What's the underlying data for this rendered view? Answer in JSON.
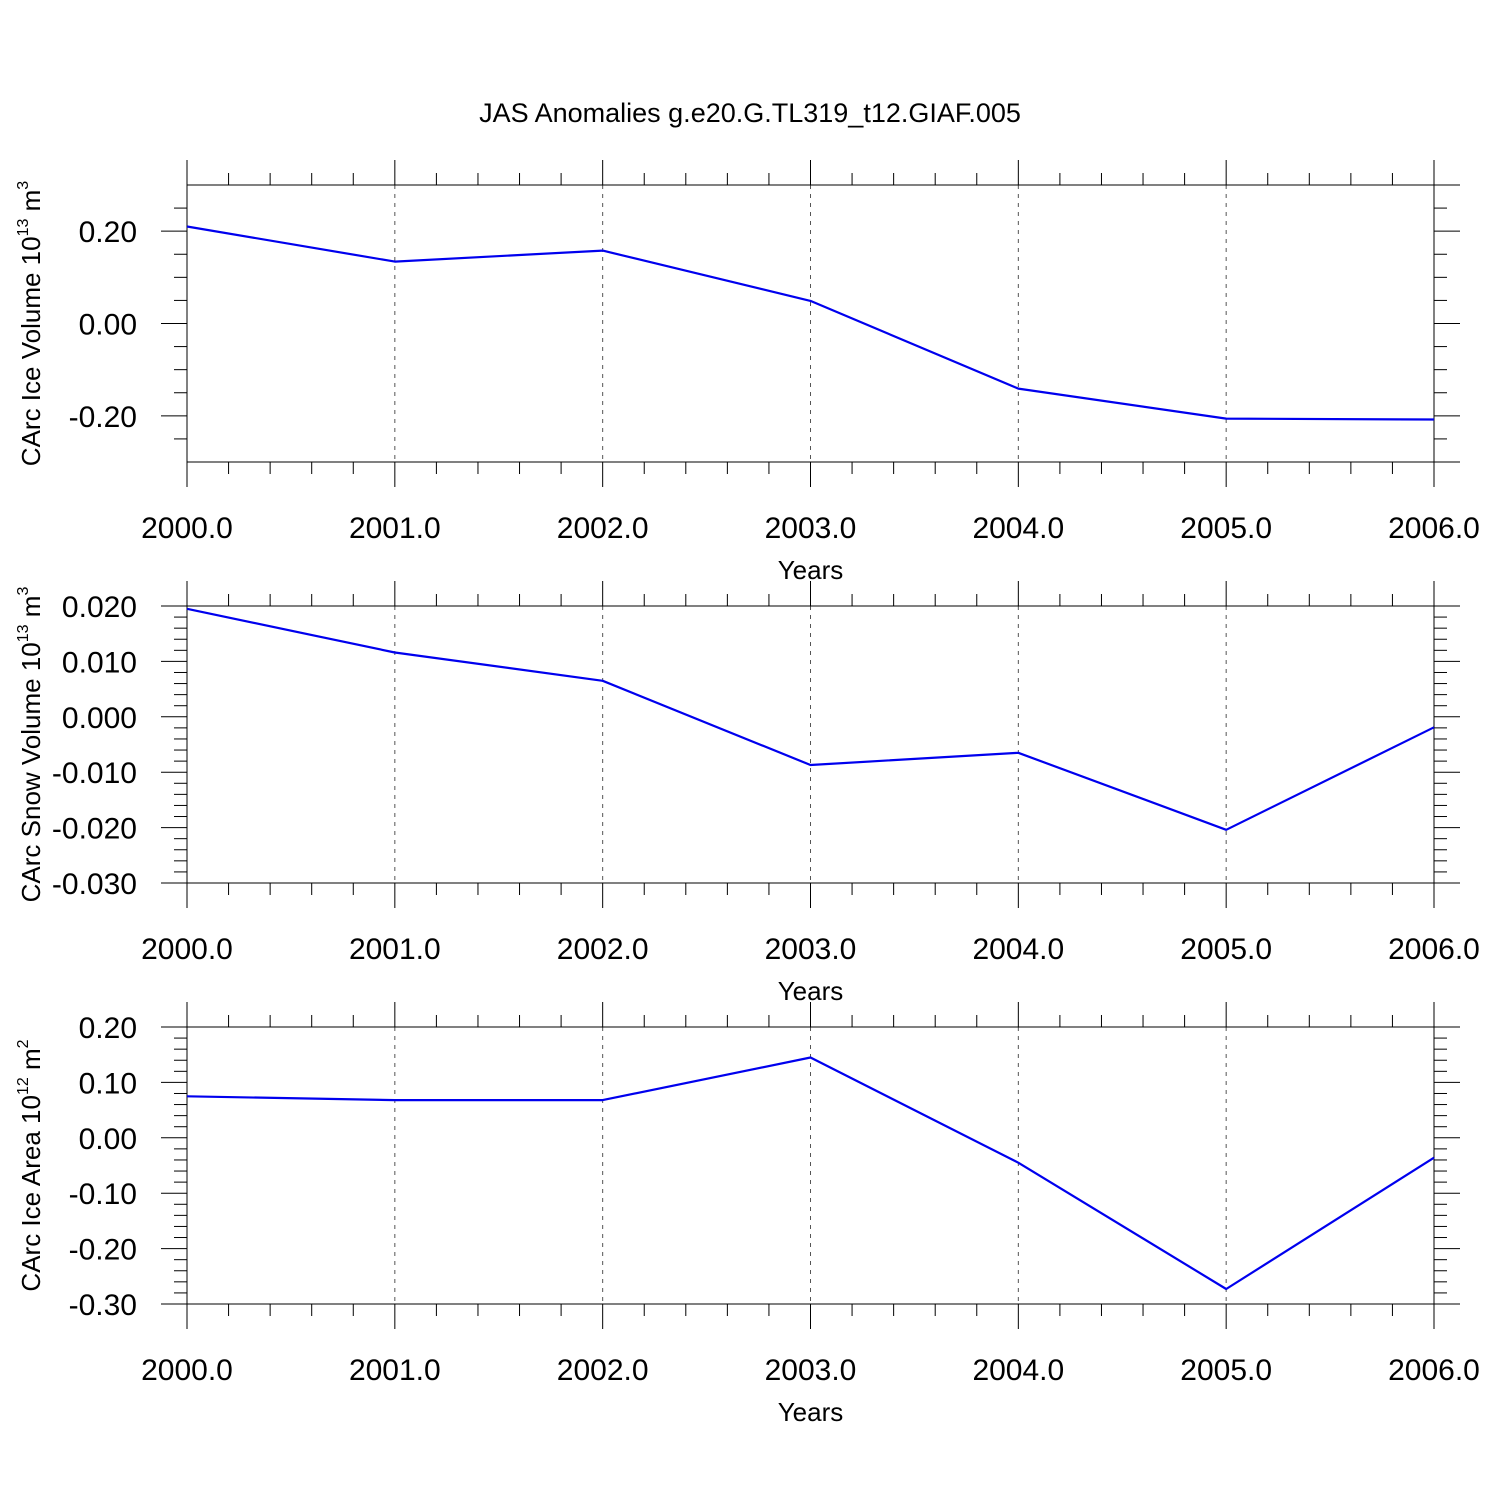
{
  "chart_data": {
    "title": "JAS Anomalies g.e20.G.TL319_t12.GIAF.005",
    "type": "line",
    "line_color": "#0000ee",
    "grid": "vertical dashed at major x ticks",
    "panels": [
      {
        "ylabel": "CArc Ice Volume 10",
        "ylabel_exp": "13",
        "ylabel_unit": "m",
        "ylabel_unit_exp": "3",
        "xlabel": "Years",
        "xlim": [
          2000,
          2006
        ],
        "ylim": [
          -0.3,
          0.3
        ],
        "yticks": [
          -0.2,
          0.0,
          0.2
        ],
        "ytick_labels": [
          "-0.20",
          "0.00",
          "0.20"
        ],
        "yminor": 0.05,
        "xticks": [
          2000,
          2001,
          2002,
          2003,
          2004,
          2005,
          2006
        ],
        "xtick_labels": [
          "2000.0",
          "2001.0",
          "2002.0",
          "2003.0",
          "2004.0",
          "2005.0",
          "2006.0"
        ],
        "x": [
          2000,
          2001,
          2002,
          2003,
          2004,
          2005,
          2006
        ],
        "y": [
          0.21,
          0.134,
          0.158,
          0.049,
          -0.141,
          -0.206,
          -0.208
        ]
      },
      {
        "ylabel": "CArc Snow Volume 10",
        "ylabel_exp": "13",
        "ylabel_unit": "m",
        "ylabel_unit_exp": "3",
        "xlabel": "Years",
        "xlim": [
          2000,
          2006
        ],
        "ylim": [
          -0.03,
          0.02
        ],
        "yticks": [
          -0.03,
          -0.02,
          -0.01,
          0.0,
          0.01,
          0.02
        ],
        "ytick_labels": [
          "-0.030",
          "-0.020",
          "-0.010",
          "0.000",
          "0.010",
          "0.020"
        ],
        "yminor": 0.002,
        "xticks": [
          2000,
          2001,
          2002,
          2003,
          2004,
          2005,
          2006
        ],
        "xtick_labels": [
          "2000.0",
          "2001.0",
          "2002.0",
          "2003.0",
          "2004.0",
          "2005.0",
          "2006.0"
        ],
        "x": [
          2000,
          2001,
          2002,
          2003,
          2004,
          2005,
          2006
        ],
        "y": [
          0.0195,
          0.0116,
          0.0065,
          -0.0087,
          -0.0065,
          -0.0204,
          -0.0019
        ]
      },
      {
        "ylabel": "CArc Ice Area 10",
        "ylabel_exp": "12",
        "ylabel_unit": "m",
        "ylabel_unit_exp": "2",
        "xlabel": "Years",
        "xlim": [
          2000,
          2006
        ],
        "ylim": [
          -0.3,
          0.2
        ],
        "yticks": [
          -0.3,
          -0.2,
          -0.1,
          0.0,
          0.1,
          0.2
        ],
        "ytick_labels": [
          "-0.30",
          "-0.20",
          "-0.10",
          "0.00",
          "0.10",
          "0.20"
        ],
        "yminor": 0.02,
        "xticks": [
          2000,
          2001,
          2002,
          2003,
          2004,
          2005,
          2006
        ],
        "xtick_labels": [
          "2000.0",
          "2001.0",
          "2002.0",
          "2003.0",
          "2004.0",
          "2005.0",
          "2006.0"
        ],
        "x": [
          2000,
          2001,
          2002,
          2003,
          2004,
          2005,
          2006
        ],
        "y": [
          0.075,
          0.068,
          0.068,
          0.145,
          -0.045,
          -0.273,
          -0.036
        ]
      }
    ]
  }
}
